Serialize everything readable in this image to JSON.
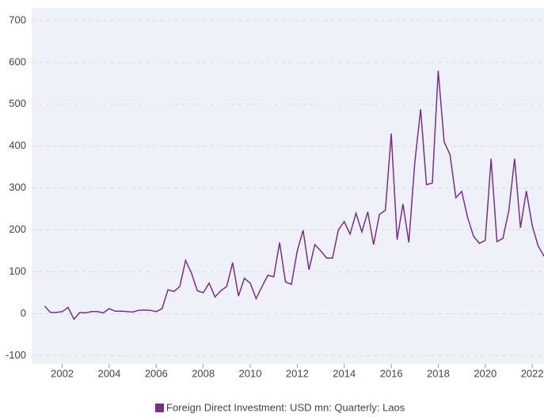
{
  "chart_data": {
    "type": "line",
    "x": [
      2001.25,
      2001.5,
      2001.75,
      2002,
      2002.25,
      2002.5,
      2002.75,
      2003,
      2003.25,
      2003.5,
      2003.75,
      2004,
      2004.25,
      2004.5,
      2004.75,
      2005,
      2005.25,
      2005.5,
      2005.75,
      2006,
      2006.25,
      2006.5,
      2006.75,
      2007,
      2007.25,
      2007.5,
      2007.75,
      2008,
      2008.25,
      2008.5,
      2008.75,
      2009,
      2009.25,
      2009.5,
      2009.75,
      2010,
      2010.25,
      2010.5,
      2010.75,
      2011,
      2011.25,
      2011.5,
      2011.75,
      2012,
      2012.25,
      2012.5,
      2012.75,
      2013,
      2013.25,
      2013.5,
      2013.75,
      2014,
      2014.25,
      2014.5,
      2014.75,
      2015,
      2015.25,
      2015.5,
      2015.75,
      2016,
      2016.25,
      2016.5,
      2016.75,
      2017,
      2017.25,
      2017.5,
      2017.75,
      2018,
      2018.25,
      2018.5,
      2018.75,
      2019,
      2019.25,
      2019.5,
      2019.75,
      2020,
      2020.25,
      2020.5,
      2020.75,
      2021,
      2021.25,
      2021.5,
      2021.75,
      2022,
      2022.25,
      2022.5
    ],
    "series": [
      {
        "name": "Foreign Direct Investment: USD mn: Quarterly: Laos",
        "color": "#7b2d8e",
        "values": [
          18,
          3,
          3,
          5,
          15,
          -13,
          3,
          2,
          5,
          5,
          2,
          12,
          6,
          6,
          5,
          4,
          8,
          9,
          8,
          5,
          12,
          57,
          53,
          65,
          127,
          97,
          55,
          50,
          73,
          40,
          55,
          65,
          122,
          42,
          85,
          73,
          36,
          65,
          92,
          88,
          170,
          76,
          70,
          150,
          199,
          105,
          165,
          150,
          133,
          133,
          200,
          220,
          190,
          240,
          195,
          243,
          165,
          237,
          247,
          430,
          177,
          262,
          170,
          360,
          488,
          308,
          312,
          580,
          410,
          380,
          277,
          292,
          230,
          185,
          168,
          175,
          370,
          172,
          180,
          245,
          370,
          205,
          293,
          210,
          162,
          137
        ]
      }
    ],
    "xlim": [
      2000.7,
      2022.5
    ],
    "xticks": [
      2002,
      2004,
      2006,
      2008,
      2010,
      2012,
      2014,
      2016,
      2018,
      2020,
      2022
    ],
    "ylim": [
      -120,
      730
    ],
    "yticks": [
      -100,
      0,
      100,
      200,
      300,
      400,
      500,
      600,
      700
    ],
    "grid": true
  }
}
